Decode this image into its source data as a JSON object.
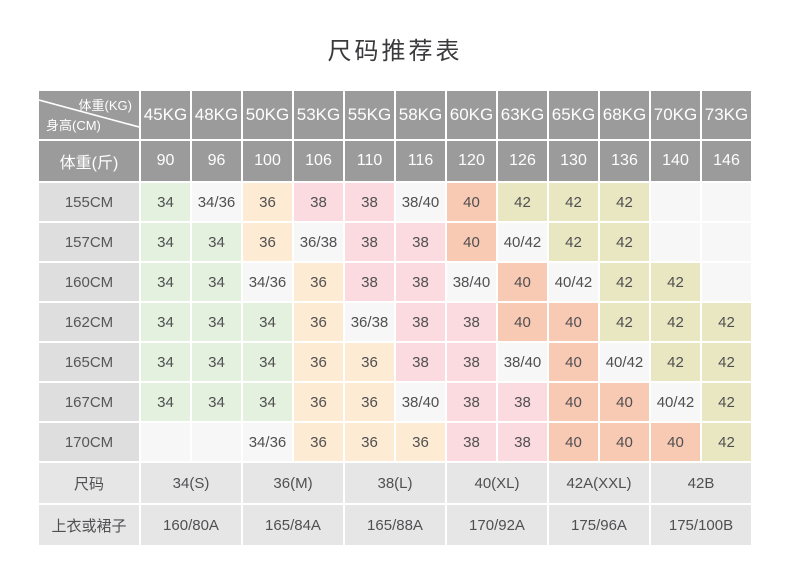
{
  "title": "尺码推荐表",
  "chart_data": {
    "type": "table",
    "title": "尺码推荐表",
    "corner": {
      "top_right": "体重(KG)",
      "bottom_left": "身高(CM)"
    },
    "columns_kg": [
      "45KG",
      "48KG",
      "50KG",
      "53KG",
      "55KG",
      "58KG",
      "60KG",
      "63KG",
      "65KG",
      "68KG",
      "70KG",
      "73KG"
    ],
    "jin_row": {
      "label": "体重(斤)",
      "values": [
        "90",
        "96",
        "100",
        "106",
        "110",
        "116",
        "120",
        "126",
        "130",
        "136",
        "140",
        "146"
      ]
    },
    "height_rows": [
      {
        "label": "155CM",
        "cells": [
          "34",
          "34/36",
          "36",
          "38",
          "38",
          "38/40",
          "40",
          "42",
          "42",
          "42",
          "",
          ""
        ]
      },
      {
        "label": "157CM",
        "cells": [
          "34",
          "34",
          "36",
          "36/38",
          "38",
          "38",
          "40",
          "40/42",
          "42",
          "42",
          "",
          ""
        ]
      },
      {
        "label": "160CM",
        "cells": [
          "34",
          "34",
          "34/36",
          "36",
          "38",
          "38",
          "38/40",
          "40",
          "40/42",
          "42",
          "42",
          ""
        ]
      },
      {
        "label": "162CM",
        "cells": [
          "34",
          "34",
          "34",
          "36",
          "36/38",
          "38",
          "38",
          "40",
          "40",
          "42",
          "42",
          "42"
        ]
      },
      {
        "label": "165CM",
        "cells": [
          "34",
          "34",
          "34",
          "36",
          "36",
          "38",
          "38",
          "38/40",
          "40",
          "40/42",
          "42",
          "42"
        ]
      },
      {
        "label": "167CM",
        "cells": [
          "34",
          "34",
          "34",
          "36",
          "36",
          "38/40",
          "38",
          "38",
          "40",
          "40",
          "40/42",
          "42"
        ]
      },
      {
        "label": "170CM",
        "cells": [
          "",
          "",
          "34/36",
          "36",
          "36",
          "36",
          "38",
          "38",
          "40",
          "40",
          "40",
          "42"
        ]
      }
    ],
    "footer_rows": [
      {
        "label": "尺码",
        "colspan": 2,
        "values": [
          "34(S)",
          "36(M)",
          "38(L)",
          "40(XL)",
          "42A(XXL)",
          "42B"
        ]
      },
      {
        "label": "上衣或裙子",
        "colspan": 2,
        "values": [
          "160/80A",
          "165/84A",
          "165/88A",
          "170/92A",
          "175/96A",
          "175/100B"
        ]
      }
    ],
    "cell_colors": {
      "34": "#e4f1df",
      "36": "#fdebd3",
      "38": "#fbdbe0",
      "40": "#f8c9b3",
      "42": "#e9e7c1",
      "mix": "#f7f7f7",
      "header_bg": "#9b9b9b",
      "row_header_bg": "#dedede",
      "footer_bg": "#e6e6e6"
    }
  }
}
